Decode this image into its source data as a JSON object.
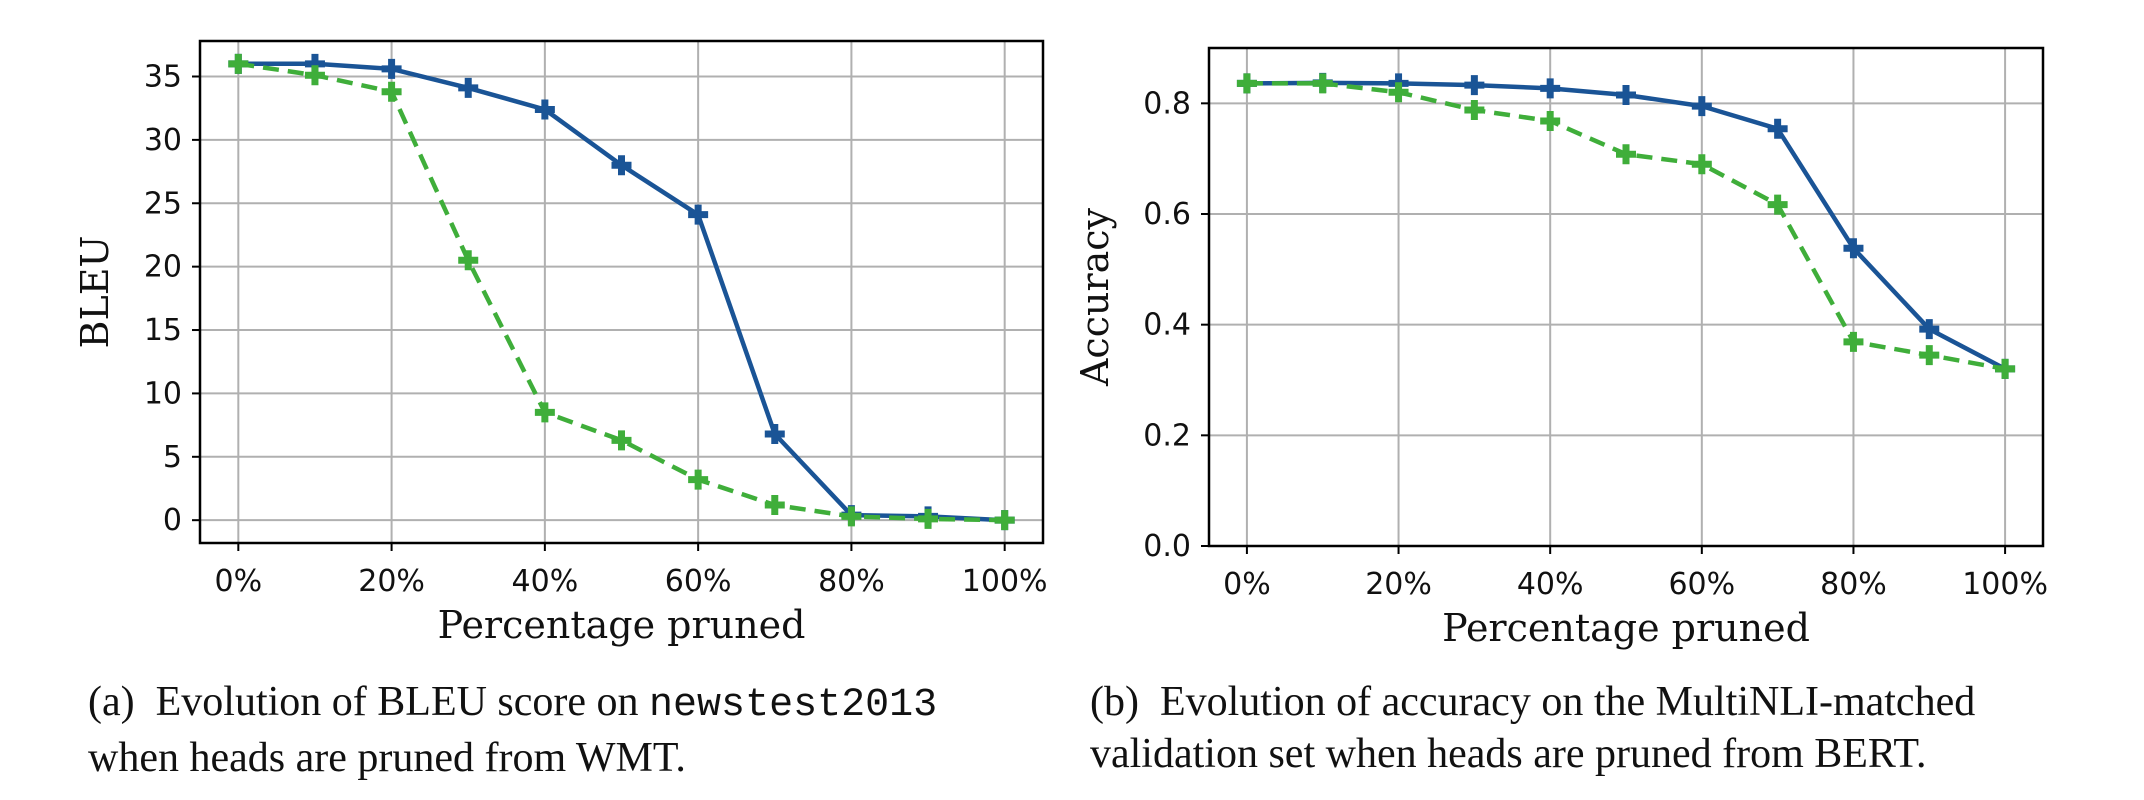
{
  "chart_data": [
    {
      "type": "line",
      "panel": "a",
      "title": "",
      "xlabel": "Percentage pruned",
      "ylabel": "BLEU",
      "x": [
        0,
        10,
        20,
        30,
        40,
        50,
        60,
        70,
        80,
        90,
        100
      ],
      "x_tick_labels": [
        "0%",
        "20%",
        "40%",
        "60%",
        "80%",
        "100%"
      ],
      "x_tick_values": [
        0,
        20,
        40,
        60,
        80,
        100
      ],
      "y_ticks": [
        0,
        5,
        10,
        15,
        20,
        25,
        30,
        35
      ],
      "y_tick_labels": [
        "0",
        "5",
        "10",
        "15",
        "20",
        "25",
        "30",
        "35"
      ],
      "xlim": [
        -5,
        105
      ],
      "ylim": [
        -1.8,
        37.8
      ],
      "grid": true,
      "legend": "none",
      "series": [
        {
          "values": [
            36.0,
            36.0,
            35.6,
            34.1,
            32.4,
            28.0,
            24.1,
            6.8,
            0.4,
            0.3,
            0.0
          ],
          "color": "#1a5496",
          "style": "solid",
          "marker": "plus"
        },
        {
          "values": [
            36.0,
            35.1,
            33.8,
            20.5,
            8.5,
            6.3,
            3.2,
            1.2,
            0.3,
            0.1,
            0.0
          ],
          "color": "#3fae3a",
          "style": "dashed",
          "marker": "plus"
        }
      ]
    },
    {
      "type": "line",
      "panel": "b",
      "title": "",
      "xlabel": "Percentage pruned",
      "ylabel": "Accuracy",
      "x": [
        0,
        10,
        20,
        30,
        40,
        50,
        60,
        70,
        80,
        90,
        100
      ],
      "x_tick_labels": [
        "0%",
        "20%",
        "40%",
        "60%",
        "80%",
        "100%"
      ],
      "x_tick_values": [
        0,
        20,
        40,
        60,
        80,
        100
      ],
      "y_ticks": [
        0.0,
        0.2,
        0.4,
        0.6,
        0.8
      ],
      "y_tick_labels": [
        "0.0",
        "0.2",
        "0.4",
        "0.6",
        "0.8"
      ],
      "xlim": [
        -5,
        105
      ],
      "ylim": [
        0,
        0.9
      ],
      "grid": true,
      "legend": "none",
      "series": [
        {
          "values": [
            0.836,
            0.837,
            0.836,
            0.833,
            0.827,
            0.815,
            0.795,
            0.754,
            0.538,
            0.392,
            0.32
          ],
          "color": "#1a5496",
          "style": "solid",
          "marker": "plus"
        },
        {
          "values": [
            0.836,
            0.836,
            0.82,
            0.788,
            0.768,
            0.708,
            0.69,
            0.617,
            0.369,
            0.345,
            0.32
          ],
          "color": "#3fae3a",
          "style": "dashed",
          "marker": "plus"
        }
      ]
    }
  ],
  "captions": {
    "a": {
      "label": "(a)",
      "text_before": "Evolution of BLEU score on",
      "code": "newstest2013",
      "line2": "when heads are pruned from WMT."
    },
    "b": {
      "label": "(b)",
      "text_before": "Evolution of accuracy on the MultiNLI-matched",
      "line2": "validation set when heads are pruned from BERT."
    }
  }
}
